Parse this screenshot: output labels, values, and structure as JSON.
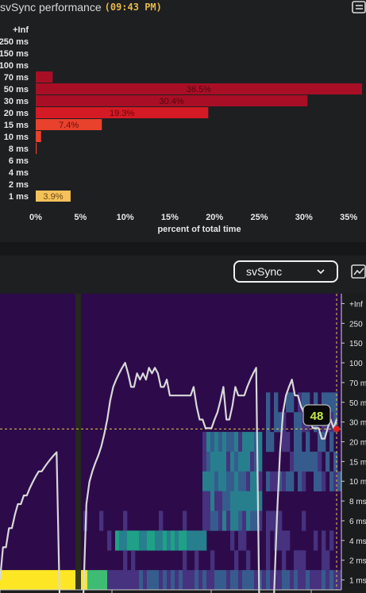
{
  "header": {
    "title": "svSync performance",
    "timestamp": "09:43 PM",
    "menu_icon": "list-icon"
  },
  "toolbar": {
    "selected_metric": "svSync",
    "dropdown_icon": "chevron-down-icon",
    "chart_toggle_icon": "line-chart-icon"
  },
  "colors": {
    "bar_dark": "#a80f26",
    "bar_red": "#d41a24",
    "bar_orange": "#e8412c",
    "bar_yellow": "#f5c15a",
    "heat_bg": "#2d0b4a",
    "line": "#d8d8d8",
    "marker": "#e21e1e",
    "badge_text": "#c8e84a"
  },
  "chart_data": [
    {
      "type": "bar",
      "orientation": "horizontal",
      "title": "",
      "xlabel": "percent of total time",
      "ylabel": "",
      "categories": [
        "+Inf",
        "250 ms",
        "150 ms",
        "100 ms",
        "70 ms",
        "50 ms",
        "30 ms",
        "20 ms",
        "15 ms",
        "10 ms",
        "8 ms",
        "6 ms",
        "4 ms",
        "2 ms",
        "1 ms"
      ],
      "values": [
        0,
        0,
        0,
        0,
        1.9,
        36.5,
        30.4,
        19.3,
        7.4,
        0.6,
        0.1,
        0,
        0,
        0,
        3.9
      ],
      "data_labels": [
        "",
        "",
        "",
        "",
        "",
        "36.5%",
        "30.4%",
        "19.3%",
        "7.4%",
        "",
        "",
        "",
        "",
        "",
        "3.9%"
      ],
      "xticks": [
        "0%",
        "5%",
        "10%",
        "15%",
        "20%",
        "25%",
        "30%",
        "35%"
      ],
      "xlim": [
        0,
        36.5
      ],
      "grid": false
    },
    {
      "type": "heatmap",
      "title": "",
      "y_ticks": [
        "+Inf",
        "250",
        "150",
        "100",
        "70 ms",
        "50 ms",
        "30 ms",
        "20 ms",
        "15 ms",
        "10 ms",
        "8 ms",
        "6 ms",
        "4 ms",
        "2 ms",
        "1 ms"
      ],
      "overlay_line": {
        "type": "line",
        "description": "frame time series over heatmap",
        "y": [
          1,
          2,
          2,
          3,
          3,
          4,
          5,
          5,
          6,
          6,
          7,
          8,
          9,
          10,
          10,
          11,
          12,
          13,
          14,
          15,
          0,
          0,
          0,
          0,
          0,
          0,
          0,
          0,
          0,
          5,
          8,
          10,
          12,
          14,
          17,
          22,
          30,
          45,
          60,
          70,
          80,
          90,
          100,
          80,
          60,
          60,
          80,
          70,
          80,
          70,
          90,
          80,
          90,
          80,
          60,
          60,
          70,
          50,
          50,
          50,
          50,
          50,
          50,
          50,
          50,
          60,
          40,
          30,
          30,
          25,
          25,
          25,
          30,
          35,
          45,
          60,
          30,
          30,
          40,
          60,
          50,
          50,
          50,
          60,
          70,
          80,
          90,
          0,
          0,
          0,
          0,
          0,
          0,
          4,
          15,
          35,
          50,
          60,
          70,
          50,
          50,
          40,
          35,
          30,
          30,
          25,
          25,
          25,
          20,
          20,
          25,
          30,
          25,
          30
        ],
        "ylim_label": "log scale ms"
      },
      "marker": {
        "label": "48"
      },
      "reference_line": {
        "value": "30 ms"
      },
      "grid": false
    }
  ]
}
